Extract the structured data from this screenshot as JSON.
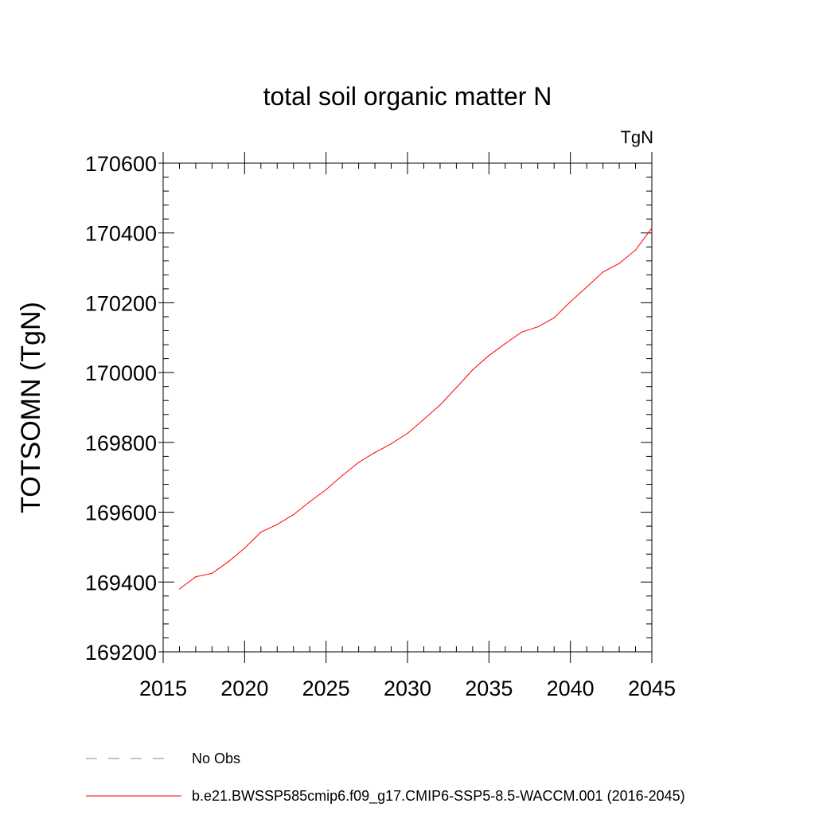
{
  "chart_data": {
    "type": "line",
    "title": "total soil organic matter N",
    "units_label": "TgN",
    "ylabel": "TOTSOMN  (TgN)",
    "xlabel": "",
    "xlim": [
      2015,
      2045
    ],
    "ylim": [
      169200,
      170600
    ],
    "x_ticks": [
      2015,
      2020,
      2025,
      2030,
      2035,
      2040,
      2045
    ],
    "y_ticks": [
      169200,
      169400,
      169600,
      169800,
      170000,
      170200,
      170400,
      170600
    ],
    "grid": false,
    "legend_position": "bottom",
    "series": [
      {
        "name": "b.e21.BWSSP585cmip6.f09_g17.CMIP6-SSP5-8.5-WACCM.001 (2016-2045)",
        "color": "#ff0000",
        "style": "solid",
        "x": [
          2016,
          2017,
          2018,
          2019,
          2020,
          2021,
          2022,
          2023,
          2024,
          2025,
          2026,
          2027,
          2028,
          2029,
          2030,
          2031,
          2032,
          2033,
          2034,
          2035,
          2036,
          2037,
          2038,
          2039,
          2040,
          2041,
          2042,
          2043,
          2044,
          2045
        ],
        "values": [
          169380,
          169415,
          169425,
          169458,
          169497,
          169543,
          169565,
          169593,
          169630,
          169665,
          169705,
          169743,
          169771,
          169796,
          169826,
          169866,
          169907,
          169957,
          170008,
          170049,
          170083,
          170116,
          170131,
          170157,
          170203,
          170245,
          170288,
          170313,
          170351,
          170414
        ]
      }
    ],
    "legend": [
      {
        "label": "No Obs",
        "color": "#7f7fbf",
        "style": "dashed"
      },
      {
        "label": "b.e21.BWSSP585cmip6.f09_g17.CMIP6-SSP5-8.5-WACCM.001 (2016-2045)",
        "color": "#ff0000",
        "style": "solid"
      }
    ]
  }
}
